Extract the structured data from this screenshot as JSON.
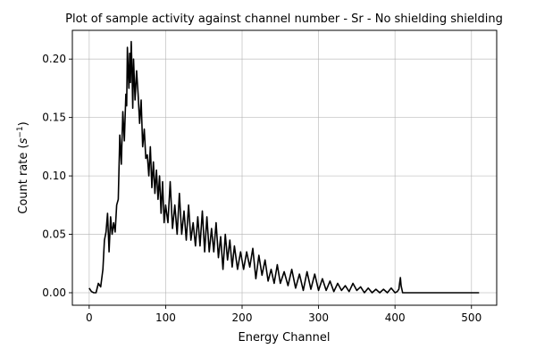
{
  "chart_data": {
    "type": "line",
    "title": "Plot of sample activity against channel number - Sr - No shielding shielding",
    "xlabel": "Energy Channel",
    "ylabel_main": "Count rate (",
    "ylabel_base": "s",
    "ylabel_sup": "−1",
    "ylabel_close": ")",
    "xlim": [
      -22,
      533
    ],
    "ylim": [
      -0.0107,
      0.2246
    ],
    "xticks": [
      0,
      100,
      200,
      300,
      400,
      500
    ],
    "xtick_labels": [
      "0",
      "100",
      "200",
      "300",
      "400",
      "500"
    ],
    "yticks": [
      0.0,
      0.05,
      0.1,
      0.15,
      0.2
    ],
    "ytick_labels": [
      "0.00",
      "0.05",
      "0.10",
      "0.15",
      "0.20"
    ],
    "grid": true,
    "series": [
      {
        "color": "#000000",
        "x": [
          0,
          3,
          6,
          9,
          12,
          15,
          18,
          20,
          22,
          24,
          26,
          28,
          30,
          32,
          34,
          36,
          38,
          40,
          42,
          44,
          46,
          48,
          49,
          50,
          51,
          52,
          53,
          54,
          55,
          56,
          57,
          58,
          60,
          62,
          64,
          66,
          68,
          70,
          72,
          74,
          76,
          78,
          80,
          82,
          84,
          86,
          88,
          90,
          92,
          94,
          96,
          98,
          100,
          103,
          106,
          109,
          112,
          115,
          118,
          121,
          124,
          127,
          130,
          133,
          136,
          139,
          142,
          145,
          148,
          151,
          154,
          157,
          160,
          163,
          166,
          169,
          172,
          175,
          178,
          181,
          184,
          187,
          190,
          194,
          198,
          202,
          206,
          210,
          214,
          218,
          222,
          226,
          230,
          234,
          238,
          242,
          246,
          250,
          255,
          260,
          265,
          270,
          275,
          280,
          285,
          290,
          295,
          300,
          305,
          310,
          315,
          320,
          325,
          330,
          335,
          340,
          345,
          350,
          355,
          360,
          365,
          370,
          375,
          380,
          385,
          390,
          395,
          400,
          403,
          405,
          406,
          407,
          408,
          410,
          415,
          420,
          450,
          480,
          510
        ],
        "y": [
          0.004,
          0.001,
          0.0,
          0.0,
          0.008,
          0.005,
          0.02,
          0.045,
          0.052,
          0.068,
          0.035,
          0.065,
          0.05,
          0.06,
          0.052,
          0.075,
          0.08,
          0.135,
          0.11,
          0.155,
          0.13,
          0.17,
          0.16,
          0.21,
          0.19,
          0.175,
          0.205,
          0.18,
          0.215,
          0.19,
          0.158,
          0.2,
          0.165,
          0.19,
          0.17,
          0.145,
          0.165,
          0.125,
          0.14,
          0.115,
          0.118,
          0.1,
          0.125,
          0.09,
          0.112,
          0.085,
          0.105,
          0.08,
          0.1,
          0.068,
          0.095,
          0.06,
          0.075,
          0.06,
          0.095,
          0.055,
          0.075,
          0.05,
          0.085,
          0.05,
          0.07,
          0.045,
          0.075,
          0.045,
          0.06,
          0.04,
          0.065,
          0.04,
          0.07,
          0.035,
          0.065,
          0.035,
          0.055,
          0.035,
          0.06,
          0.03,
          0.048,
          0.02,
          0.05,
          0.028,
          0.045,
          0.022,
          0.04,
          0.02,
          0.035,
          0.02,
          0.035,
          0.022,
          0.038,
          0.012,
          0.032,
          0.015,
          0.028,
          0.01,
          0.02,
          0.008,
          0.024,
          0.008,
          0.018,
          0.006,
          0.02,
          0.004,
          0.016,
          0.002,
          0.018,
          0.003,
          0.016,
          0.002,
          0.012,
          0.002,
          0.01,
          0.001,
          0.008,
          0.002,
          0.006,
          0.001,
          0.008,
          0.002,
          0.005,
          0.0,
          0.004,
          0.0,
          0.003,
          0.0,
          0.003,
          0.0,
          0.004,
          0.0,
          0.001,
          0.003,
          0.008,
          0.013,
          0.006,
          0.0,
          0.0,
          0.0,
          0.0,
          0.0,
          0.0
        ]
      }
    ]
  }
}
